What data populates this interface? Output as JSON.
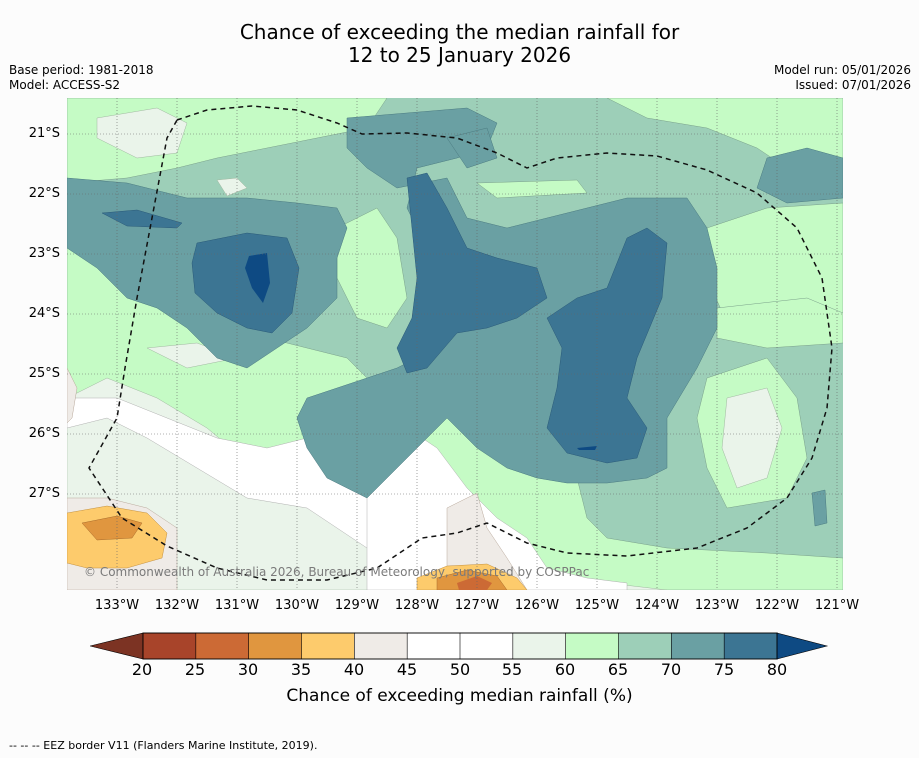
{
  "title_line1": "Chance of exceeding the median rainfall for",
  "title_line2": "12 to 25 January 2026",
  "base_period": "Base period: 1981-2018",
  "model": "Model: ACCESS-S2",
  "model_run": "Model run: 05/01/2026",
  "issued": "Issued: 07/01/2026",
  "copyright": "© Commonwealth of Australia 2026, Bureau of Meteorology, supported by COSPPac",
  "lat_ticks": [
    "21°S",
    "22°S",
    "23°S",
    "24°S",
    "25°S",
    "26°S",
    "27°S"
  ],
  "lon_ticks": [
    "133°W",
    "132°W",
    "131°W",
    "130°W",
    "129°W",
    "128°W",
    "127°W",
    "126°W",
    "125°W",
    "124°W",
    "123°W",
    "122°W",
    "121°W"
  ],
  "colorbar": {
    "labels": [
      "20",
      "25",
      "30",
      "35",
      "40",
      "45",
      "50",
      "55",
      "60",
      "65",
      "70",
      "75",
      "80"
    ],
    "colors": [
      "#a8442a",
      "#cc6a35",
      "#e0963f",
      "#fdcb6c",
      "#efebe7",
      "#ffffff",
      "#ffffff",
      "#eaf4ea",
      "#c5fbc5",
      "#9dcfb8",
      "#6aa0a3",
      "#3c7593"
    ],
    "under_color": "#7c3323",
    "over_color": "#0e4a83",
    "title": "Chance of exceeding median rainfall (%)"
  },
  "footnote": "--  --  -- EEZ border V11 (Flanders Marine Institute, 2019)."
}
